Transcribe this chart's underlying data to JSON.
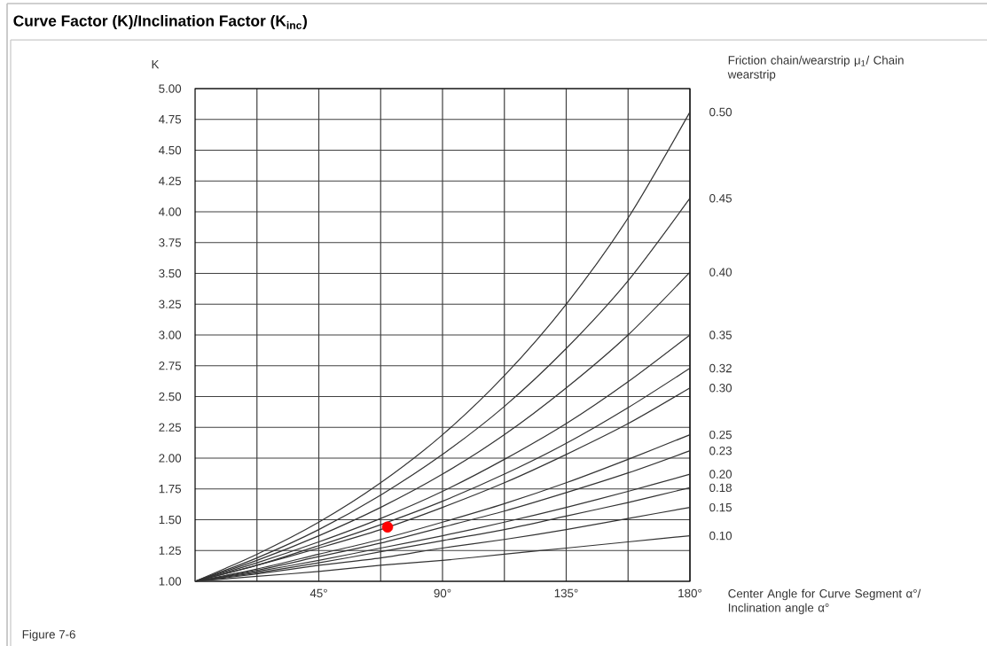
{
  "chart_data": {
    "type": "line",
    "title": "Curve Factor (K)/Inclination Factor (K$_{inc}$)",
    "ylabel": "K",
    "xlabel": "Center Angle for Curve Segment α°/ Inclination angle α°",
    "legend_title": "Friction chain/wearstrip μ$_{1}$/ Chain wearstrip",
    "annotations": [
      "Figure 7-6"
    ],
    "x": [
      0,
      22.5,
      45,
      67.5,
      90,
      112.5,
      135,
      157.5,
      180
    ],
    "xlim": [
      0,
      180
    ],
    "ylim": [
      1,
      5
    ],
    "xticks": [
      {
        "value": 22.5,
        "label": null
      },
      {
        "value": 45,
        "label": "45°"
      },
      {
        "value": 67.5,
        "label": null
      },
      {
        "value": 90,
        "label": "90°"
      },
      {
        "value": 112.5,
        "label": null
      },
      {
        "value": 135,
        "label": "135°"
      },
      {
        "value": 157.5,
        "label": null
      },
      {
        "value": 180,
        "label": "180°"
      }
    ],
    "yticks": [
      {
        "value": 1,
        "label": "1.00"
      },
      {
        "value": 1.25,
        "label": "1.25"
      },
      {
        "value": 1.5,
        "label": "1.50"
      },
      {
        "value": 1.75,
        "label": "1.75"
      },
      {
        "value": 2,
        "label": "2.00"
      },
      {
        "value": 2.25,
        "label": "2.25"
      },
      {
        "value": 2.5,
        "label": "2.50"
      },
      {
        "value": 2.75,
        "label": "2.75"
      },
      {
        "value": 3,
        "label": "3.00"
      },
      {
        "value": 3.25,
        "label": "3.25"
      },
      {
        "value": 3.5,
        "label": "3.50"
      },
      {
        "value": 3.75,
        "label": "3.75"
      },
      {
        "value": 4,
        "label": "4.00"
      },
      {
        "value": 4.25,
        "label": "4.25"
      },
      {
        "value": 4.5,
        "label": "4.50"
      },
      {
        "value": 4.75,
        "label": "4.75"
      },
      {
        "value": 5,
        "label": "5.00"
      }
    ],
    "grid": true,
    "series": [
      {
        "name": "0.50",
        "color": "#333333",
        "values": [
          1,
          1.22,
          1.48,
          1.8,
          2.19,
          2.67,
          3.25,
          3.95,
          4.81
        ]
      },
      {
        "name": "0.45",
        "color": "#333333",
        "values": [
          1,
          1.19,
          1.42,
          1.7,
          2.03,
          2.42,
          2.89,
          3.44,
          4.11
        ]
      },
      {
        "name": "0.40",
        "color": "#333333",
        "values": [
          1,
          1.17,
          1.37,
          1.6,
          1.87,
          2.19,
          2.57,
          3.0,
          3.51
        ]
      },
      {
        "name": "0.35",
        "color": "#333333",
        "values": [
          1,
          1.15,
          1.32,
          1.51,
          1.73,
          1.99,
          2.28,
          2.62,
          3.0
        ]
      },
      {
        "name": "0.32",
        "color": "#333333",
        "values": [
          1,
          1.13,
          1.29,
          1.46,
          1.65,
          1.87,
          2.12,
          2.41,
          2.73
        ]
      },
      {
        "name": "0.30",
        "color": "#333333",
        "values": [
          1,
          1.13,
          1.27,
          1.42,
          1.6,
          1.8,
          2.03,
          2.28,
          2.57
        ]
      },
      {
        "name": "0.25",
        "color": "#333333",
        "values": [
          1,
          1.1,
          1.22,
          1.34,
          1.48,
          1.63,
          1.8,
          1.99,
          2.19
        ]
      },
      {
        "name": "0.23",
        "color": "#333333",
        "values": [
          1,
          1.09,
          1.2,
          1.31,
          1.44,
          1.57,
          1.72,
          1.88,
          2.06
        ]
      },
      {
        "name": "0.20",
        "color": "#333333",
        "values": [
          1,
          1.08,
          1.17,
          1.27,
          1.37,
          1.48,
          1.6,
          1.73,
          1.87
        ]
      },
      {
        "name": "0.18",
        "color": "#333333",
        "values": [
          1,
          1.07,
          1.15,
          1.24,
          1.33,
          1.42,
          1.53,
          1.64,
          1.76
        ]
      },
      {
        "name": "0.15",
        "color": "#333333",
        "values": [
          1,
          1.06,
          1.13,
          1.19,
          1.27,
          1.34,
          1.42,
          1.51,
          1.6
        ]
      },
      {
        "name": "0.10",
        "color": "#333333",
        "values": [
          1,
          1.04,
          1.08,
          1.13,
          1.17,
          1.22,
          1.27,
          1.32,
          1.37
        ]
      },
      {
        "type": "scatter",
        "color": "#ff0000",
        "marker": "circle",
        "x": [
          70
        ],
        "values": [
          1.44
        ]
      }
    ]
  }
}
